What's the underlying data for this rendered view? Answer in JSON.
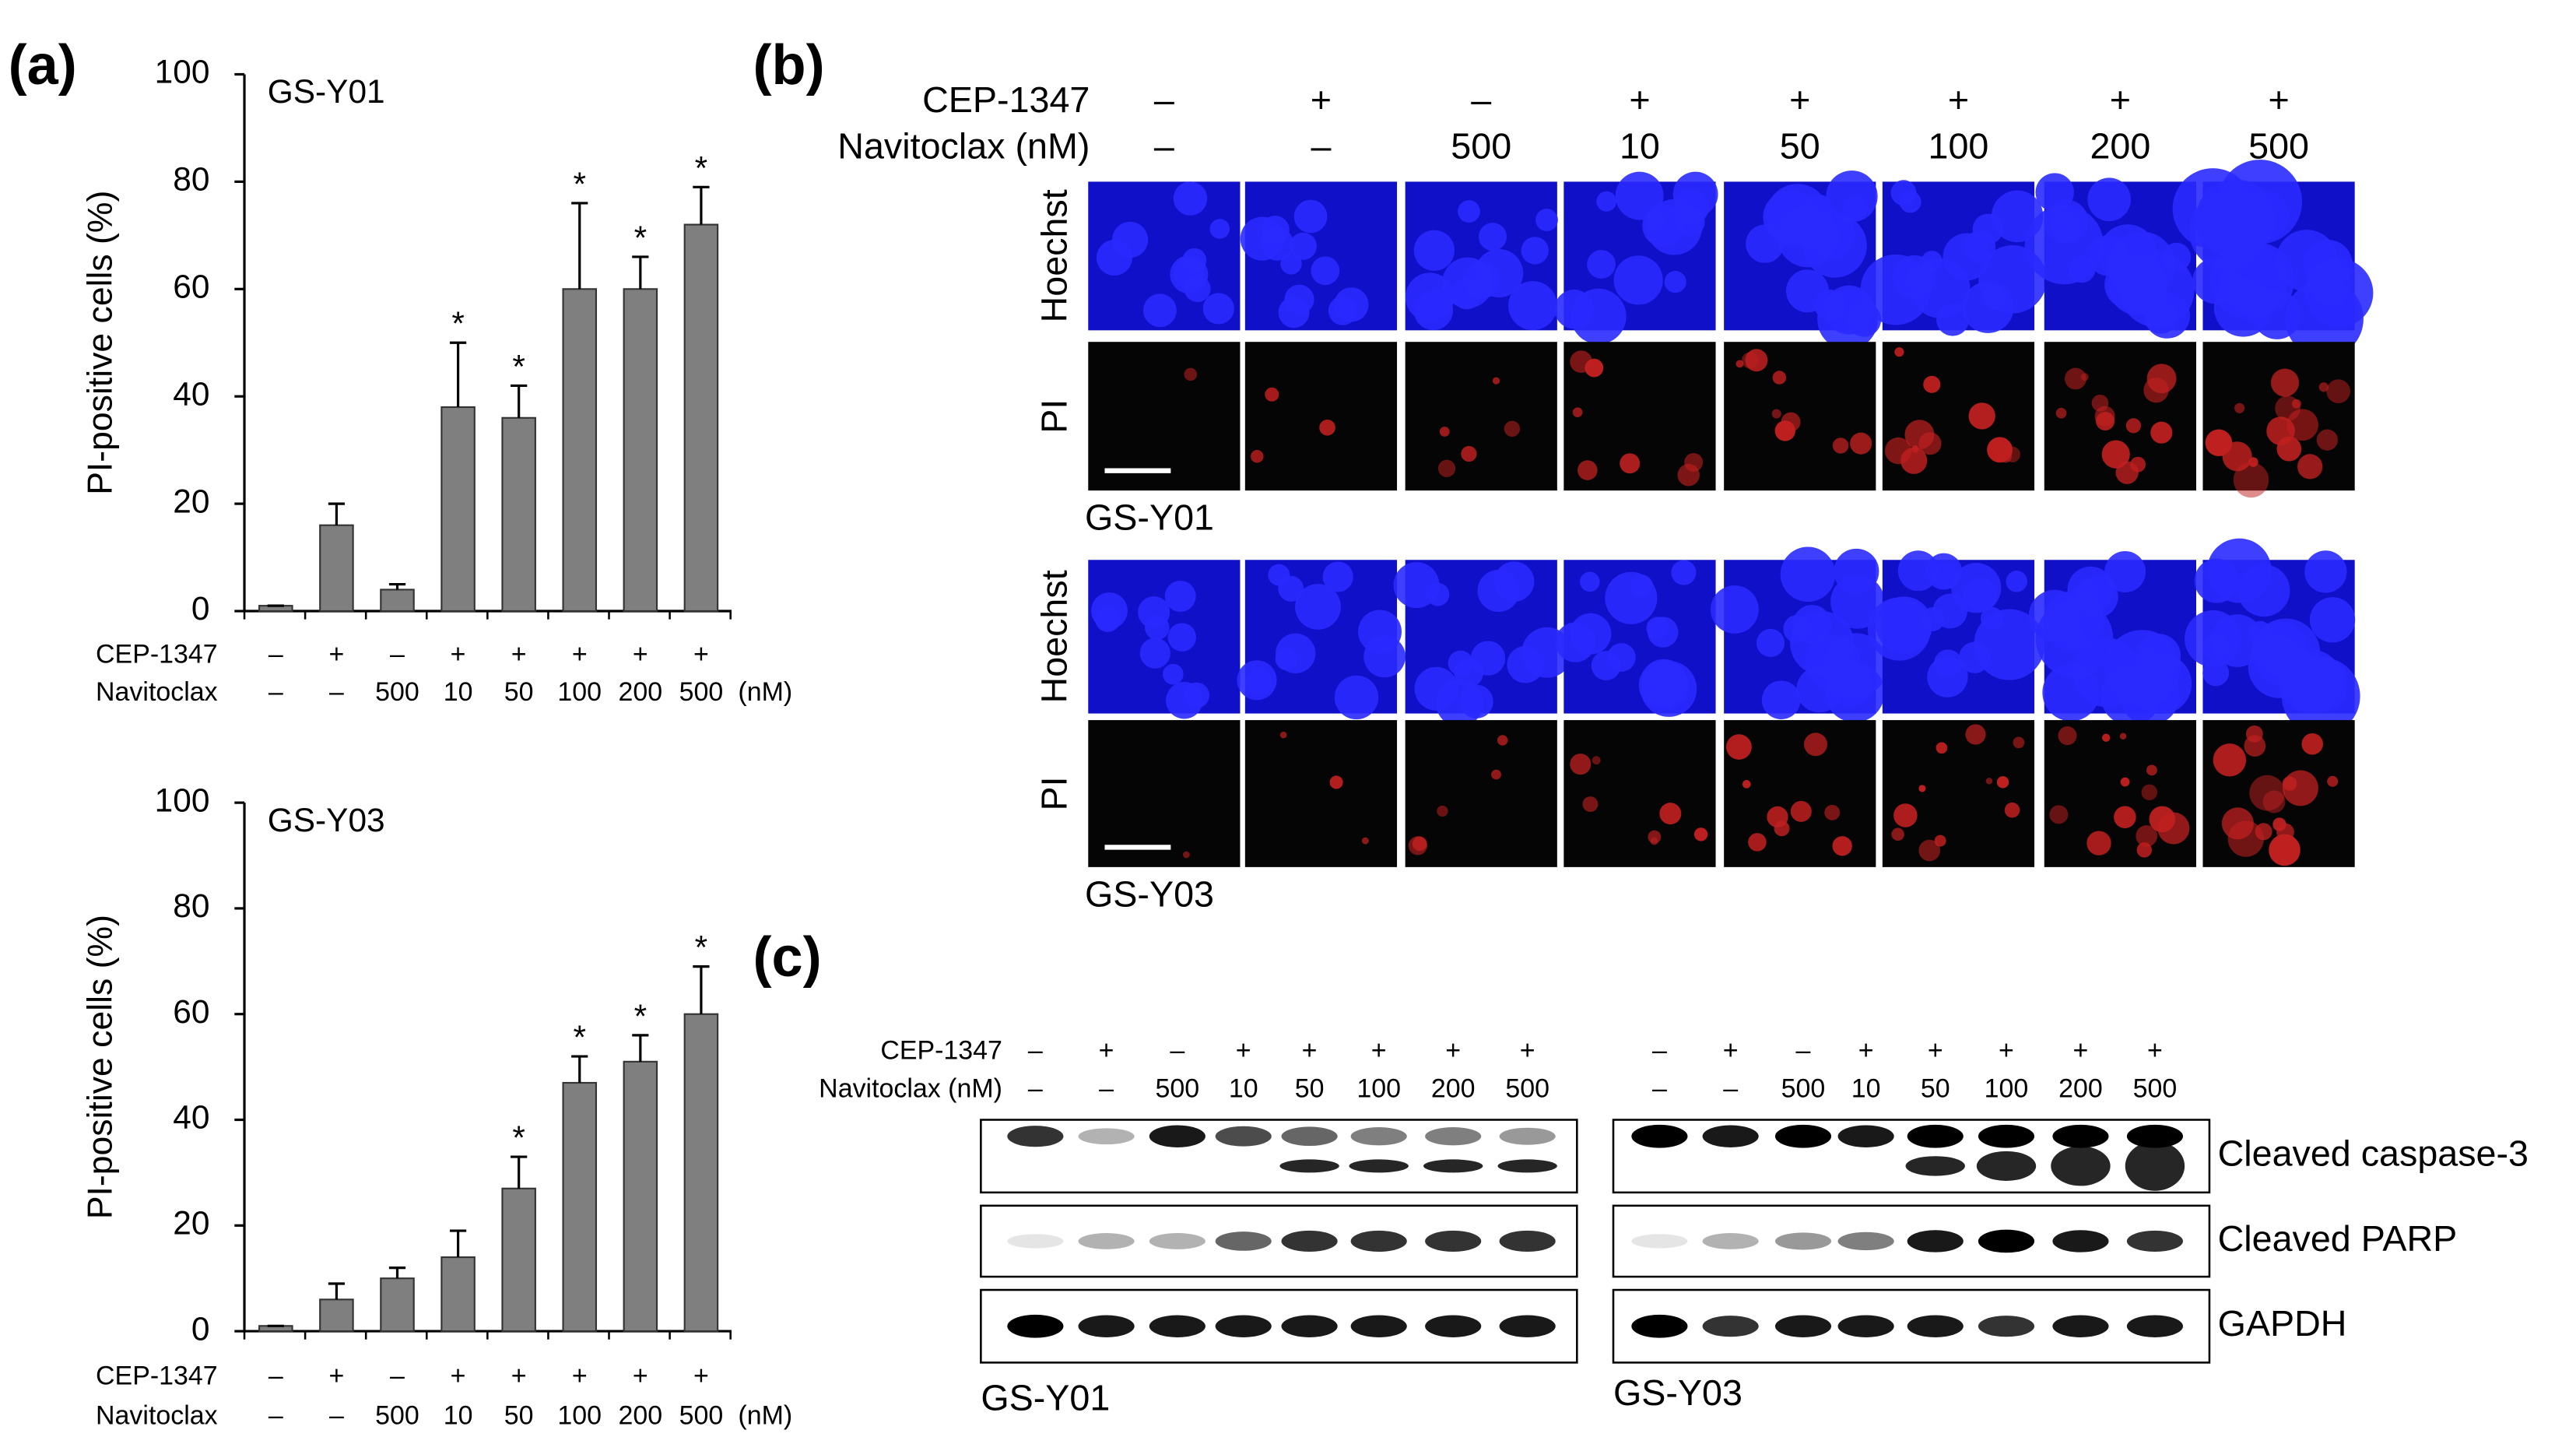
{
  "panel_labels": [
    "(a)",
    "(b)",
    "(c)"
  ],
  "chart_data": [
    {
      "type": "bar",
      "title": "GS-Y01",
      "y_label": "PI-positive cells (%)",
      "row_labels": [
        "CEP-1347",
        "Navitoclax"
      ],
      "unit_label": "(nM)",
      "cep1347": [
        "–",
        "+",
        "–",
        "+",
        "+",
        "+",
        "+",
        "+"
      ],
      "navitoclax": [
        "–",
        "–",
        "500",
        "10",
        "50",
        "100",
        "200",
        "500"
      ],
      "values": [
        1,
        16,
        4,
        38,
        36,
        60,
        60,
        72
      ],
      "errors": [
        0,
        4,
        1,
        12,
        6,
        16,
        6,
        7
      ],
      "significance": [
        null,
        null,
        null,
        "*",
        "*",
        "*",
        "*",
        "*"
      ],
      "color": "#7f7f7f",
      "ylim": [
        0,
        100
      ],
      "yticks": [
        0,
        20,
        40,
        60,
        80,
        100
      ]
    },
    {
      "type": "bar",
      "title": "GS-Y03",
      "y_label": "PI-positive cells (%)",
      "row_labels": [
        "CEP-1347",
        "Navitoclax"
      ],
      "unit_label": "(nM)",
      "cep1347": [
        "–",
        "+",
        "–",
        "+",
        "+",
        "+",
        "+",
        "+"
      ],
      "navitoclax": [
        "–",
        "–",
        "500",
        "10",
        "50",
        "100",
        "200",
        "500"
      ],
      "values": [
        1,
        6,
        10,
        14,
        27,
        47,
        51,
        60
      ],
      "errors": [
        0,
        3,
        2,
        5,
        6,
        5,
        5,
        9
      ],
      "significance": [
        null,
        null,
        null,
        null,
        "*",
        "*",
        "*",
        "*"
      ],
      "color": "#7f7f7f",
      "ylim": [
        0,
        100
      ],
      "yticks": [
        0,
        20,
        40,
        60,
        80,
        100
      ]
    }
  ],
  "panel_b": {
    "row_labels": [
      "CEP-1347",
      "Navitoclax (nM)"
    ],
    "cep1347": [
      "–",
      "+",
      "–",
      "+",
      "+",
      "+",
      "+",
      "+"
    ],
    "navitoclax": [
      "–",
      "–",
      "500",
      "10",
      "50",
      "100",
      "200",
      "500"
    ],
    "blocks": [
      {
        "cell_line": "GS-Y01",
        "channels": [
          "Hoechst",
          "PI"
        ]
      },
      {
        "cell_line": "GS-Y03",
        "channels": [
          "Hoechst",
          "PI"
        ]
      }
    ]
  },
  "panel_c": {
    "row_labels": [
      "CEP-1347",
      "Navitoclax  (nM)"
    ],
    "proteins": [
      "Cleaved caspase-3",
      "Cleaved PARP",
      "GAPDH"
    ],
    "blots": [
      {
        "cell_line": "GS-Y01",
        "cep1347": [
          "–",
          "+",
          "–",
          "+",
          "+",
          "+",
          "+",
          "+"
        ],
        "navitoclax": [
          "–",
          "–",
          "500",
          "10",
          "50",
          "100",
          "200",
          "500"
        ]
      },
      {
        "cell_line": "GS-Y03",
        "cep1347": [
          "–",
          "+",
          "–",
          "+",
          "+",
          "+",
          "+",
          "+"
        ],
        "navitoclax": [
          "–",
          "–",
          "500",
          "10",
          "50",
          "100",
          "200",
          "500"
        ]
      }
    ]
  }
}
